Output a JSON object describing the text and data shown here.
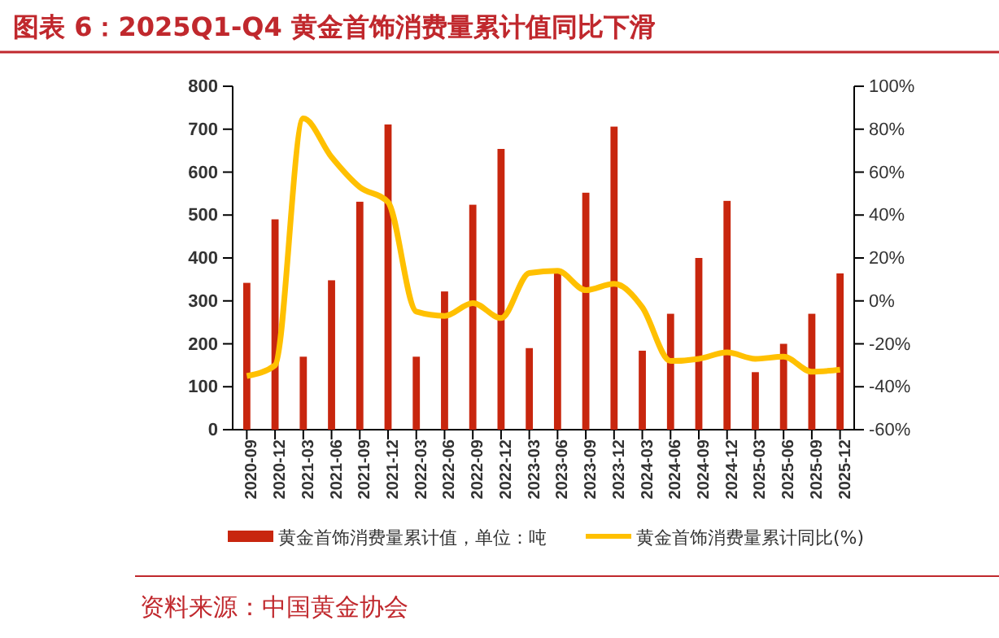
{
  "chart_data": {
    "type": "bar",
    "title": "图表 6：2025Q1-Q4 黄金首饰消费量累计值同比下滑",
    "categories": [
      "2020-09",
      "2020-12",
      "2021-03",
      "2021-06",
      "2021-09",
      "2021-12",
      "2022-03",
      "2022-06",
      "2022-09",
      "2022-12",
      "2023-03",
      "2023-06",
      "2023-09",
      "2023-12",
      "2024-03",
      "2024-06",
      "2024-09",
      "2024-12",
      "2025-03",
      "2025-06",
      "2025-09",
      "2025-12"
    ],
    "series": [
      {
        "name": "黄金首饰消费量累计值，单位：吨",
        "color": "#c8260e",
        "values": [
          342,
          490,
          170,
          348,
          531,
          711,
          170,
          322,
          524,
          654,
          190,
          368,
          552,
          706,
          184,
          270,
          400,
          533,
          134,
          200,
          270,
          364
        ]
      },
      {
        "name": "黄金首饰消费量累计同比(%)",
        "type": "line",
        "axis": "y2",
        "color": "#ffc000",
        "values": [
          -35,
          -30,
          85,
          67,
          53,
          46,
          -5,
          -7,
          -1,
          -8,
          13,
          14,
          5,
          8,
          -3,
          -28,
          -27,
          -24,
          -27,
          -26,
          -33,
          -32
        ]
      }
    ],
    "ylim": [
      0,
      800
    ],
    "yticks": [
      0,
      100,
      200,
      300,
      400,
      500,
      600,
      700,
      800
    ],
    "y2lim": [
      -60,
      100
    ],
    "y2ticks": [
      {
        "value": -60,
        "label": "-60%"
      },
      {
        "value": -40,
        "label": "-40%"
      },
      {
        "value": -20,
        "label": "-20%"
      },
      {
        "value": 0,
        "label": "0%"
      },
      {
        "value": 20,
        "label": "20%"
      },
      {
        "value": 40,
        "label": "40%"
      },
      {
        "value": 60,
        "label": "60%"
      },
      {
        "value": 80,
        "label": "80%"
      },
      {
        "value": 100,
        "label": "100%"
      }
    ],
    "legend": "bottom",
    "grid": false,
    "marker": "none",
    "line_style": "solid",
    "annotations": [
      "资料来源：中国黄金协会"
    ]
  }
}
